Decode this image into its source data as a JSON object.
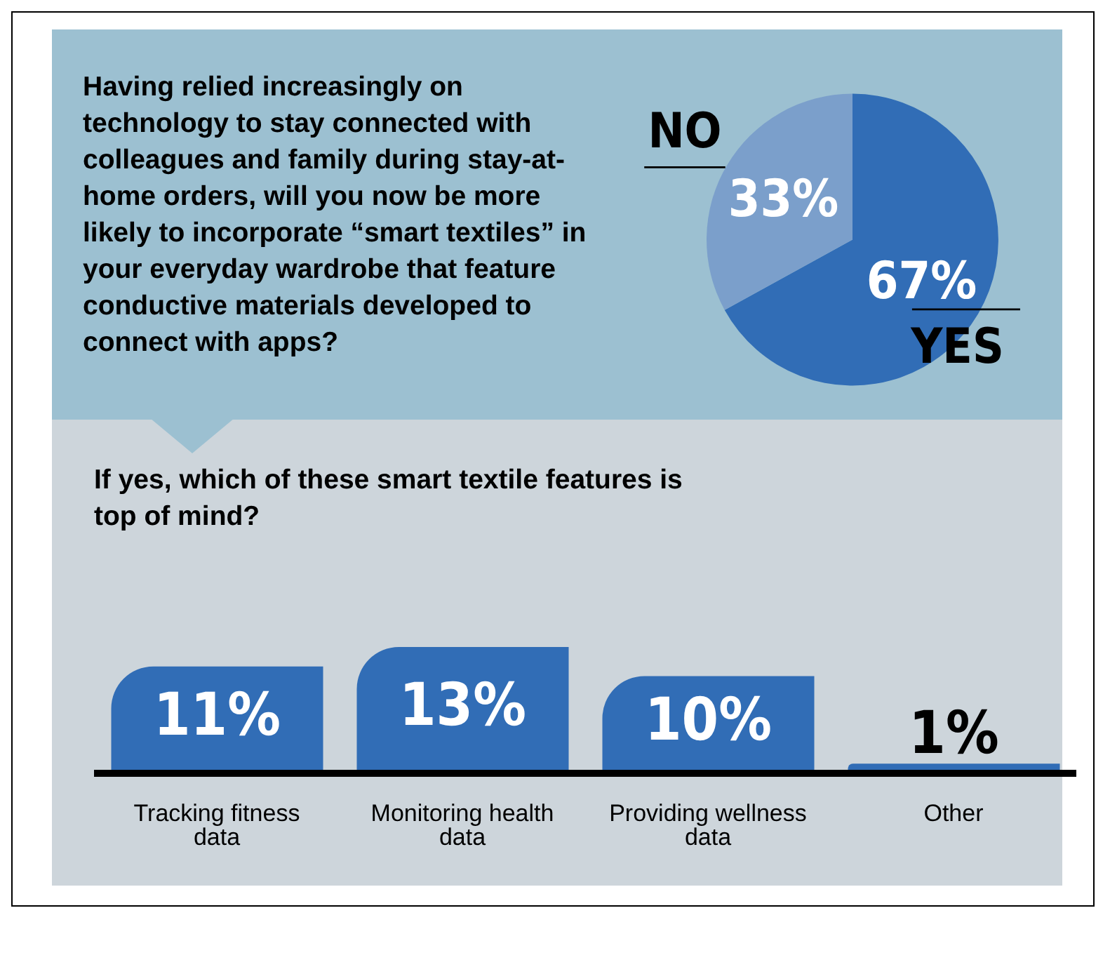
{
  "chart_data": [
    {
      "type": "pie",
      "title": "Having relied increasingly on technology to stay connected with colleagues and family during stay-at-home orders, will you now be more likely to incorporate “smart textiles” in your everyday wardrobe that feature conductive materials developed to connect with apps?",
      "categories": [
        "YES",
        "NO"
      ],
      "values": [
        67,
        33
      ],
      "value_labels": [
        "67%",
        "33%"
      ],
      "colors": [
        "#316db6",
        "#7b9fcb"
      ]
    },
    {
      "type": "bar",
      "title": "If yes, which of these smart textile features is top of mind?",
      "categories": [
        "Tracking fitness data",
        "Monitoring health data",
        "Providing wellness data",
        "Other"
      ],
      "values": [
        11,
        13,
        10,
        1
      ],
      "value_labels": [
        "11%",
        "13%",
        "10%",
        "1%"
      ],
      "color": "#316db6"
    }
  ]
}
